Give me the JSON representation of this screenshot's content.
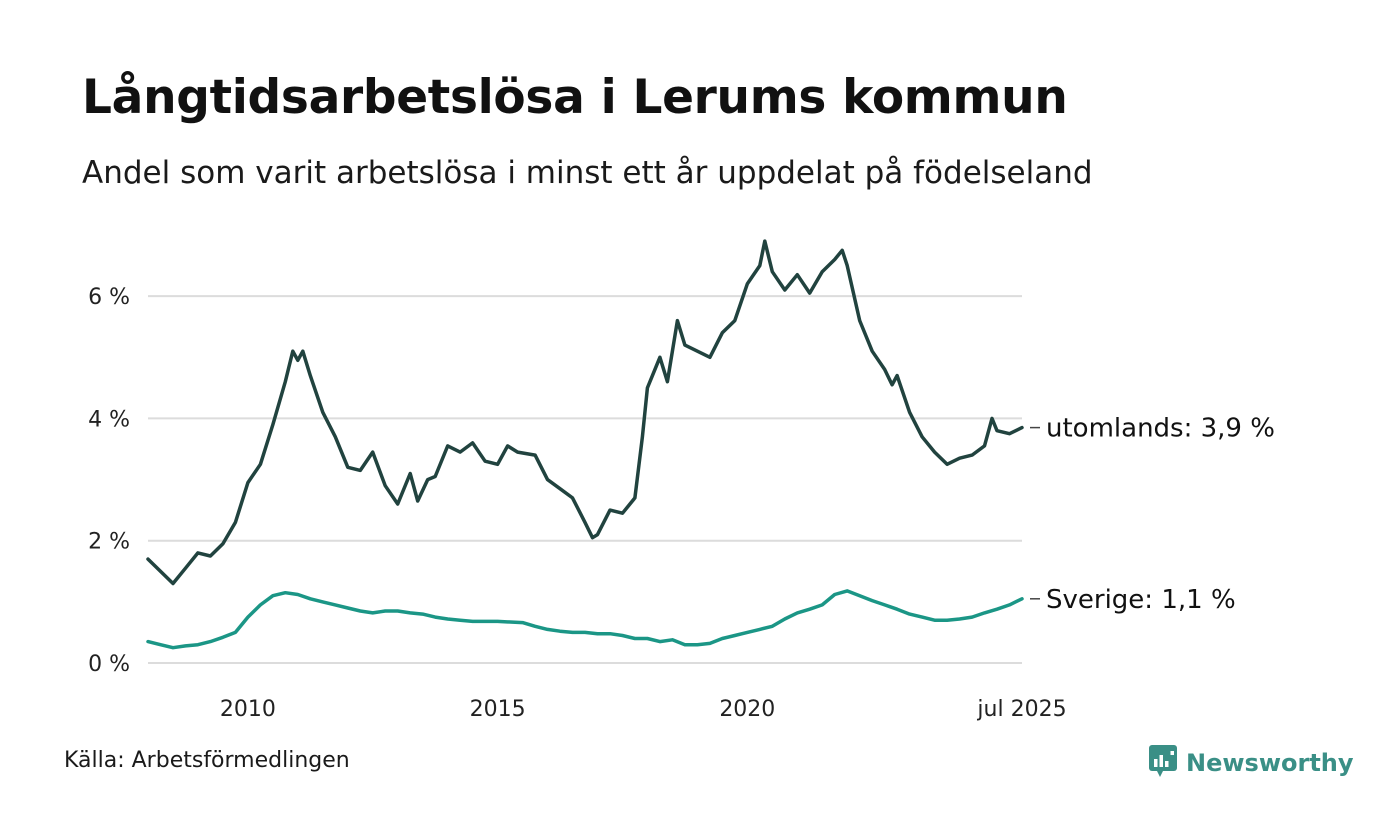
{
  "title": "Långtidsarbetslösa i Lerums kommun",
  "subtitle": "Andel som varit arbetslösa i minst ett år uppdelat på födelseland",
  "source": "Källa: Arbetsförmedlingen",
  "brand": {
    "name": "Newsworthy",
    "icon": "newsworthy-logo-icon",
    "color": "#3a8f86"
  },
  "chart_data": {
    "type": "line",
    "ylim": [
      0,
      7
    ],
    "y_ticks": [
      {
        "value": 0,
        "label": "0 %"
      },
      {
        "value": 2,
        "label": "2 %"
      },
      {
        "value": 4,
        "label": "4 %"
      },
      {
        "value": 6,
        "label": "6 %"
      }
    ],
    "x_ticks": [
      {
        "value": 2010,
        "label": "2010"
      },
      {
        "value": 2015,
        "label": "2015"
      },
      {
        "value": 2020,
        "label": "2020"
      },
      {
        "value": 2025.5,
        "label": "jul 2025"
      }
    ],
    "xlim": [
      2008.0,
      2025.5
    ],
    "grid": true,
    "series": [
      {
        "name": "utomlands",
        "end_label": "utomlands: 3,9 %",
        "color": "#21433f",
        "points": [
          [
            2008.0,
            1.7
          ],
          [
            2008.5,
            1.3
          ],
          [
            2008.75,
            1.55
          ],
          [
            2009.0,
            1.8
          ],
          [
            2009.25,
            1.75
          ],
          [
            2009.5,
            1.95
          ],
          [
            2009.75,
            2.3
          ],
          [
            2010.0,
            2.95
          ],
          [
            2010.25,
            3.25
          ],
          [
            2010.5,
            3.9
          ],
          [
            2010.75,
            4.6
          ],
          [
            2010.9,
            5.1
          ],
          [
            2011.0,
            4.95
          ],
          [
            2011.1,
            5.1
          ],
          [
            2011.25,
            4.7
          ],
          [
            2011.5,
            4.1
          ],
          [
            2011.75,
            3.7
          ],
          [
            2012.0,
            3.2
          ],
          [
            2012.25,
            3.15
          ],
          [
            2012.5,
            3.45
          ],
          [
            2012.75,
            2.9
          ],
          [
            2013.0,
            2.6
          ],
          [
            2013.25,
            3.1
          ],
          [
            2013.4,
            2.65
          ],
          [
            2013.6,
            3.0
          ],
          [
            2013.75,
            3.05
          ],
          [
            2014.0,
            3.55
          ],
          [
            2014.25,
            3.45
          ],
          [
            2014.5,
            3.6
          ],
          [
            2014.75,
            3.3
          ],
          [
            2015.0,
            3.25
          ],
          [
            2015.2,
            3.55
          ],
          [
            2015.4,
            3.45
          ],
          [
            2015.75,
            3.4
          ],
          [
            2016.0,
            3.0
          ],
          [
            2016.25,
            2.85
          ],
          [
            2016.5,
            2.7
          ],
          [
            2016.75,
            2.3
          ],
          [
            2016.9,
            2.05
          ],
          [
            2017.0,
            2.1
          ],
          [
            2017.25,
            2.5
          ],
          [
            2017.5,
            2.45
          ],
          [
            2017.75,
            2.7
          ],
          [
            2017.9,
            3.7
          ],
          [
            2018.0,
            4.5
          ],
          [
            2018.25,
            5.0
          ],
          [
            2018.4,
            4.6
          ],
          [
            2018.6,
            5.6
          ],
          [
            2018.75,
            5.2
          ],
          [
            2019.0,
            5.1
          ],
          [
            2019.25,
            5.0
          ],
          [
            2019.5,
            5.4
          ],
          [
            2019.75,
            5.6
          ],
          [
            2020.0,
            6.2
          ],
          [
            2020.25,
            6.5
          ],
          [
            2020.35,
            6.9
          ],
          [
            2020.5,
            6.4
          ],
          [
            2020.75,
            6.1
          ],
          [
            2021.0,
            6.35
          ],
          [
            2021.25,
            6.05
          ],
          [
            2021.5,
            6.4
          ],
          [
            2021.75,
            6.6
          ],
          [
            2021.9,
            6.75
          ],
          [
            2022.0,
            6.5
          ],
          [
            2022.25,
            5.6
          ],
          [
            2022.5,
            5.1
          ],
          [
            2022.75,
            4.8
          ],
          [
            2022.9,
            4.55
          ],
          [
            2023.0,
            4.7
          ],
          [
            2023.25,
            4.1
          ],
          [
            2023.5,
            3.7
          ],
          [
            2023.75,
            3.45
          ],
          [
            2024.0,
            3.25
          ],
          [
            2024.25,
            3.35
          ],
          [
            2024.5,
            3.4
          ],
          [
            2024.75,
            3.55
          ],
          [
            2024.9,
            4.0
          ],
          [
            2025.0,
            3.8
          ],
          [
            2025.25,
            3.75
          ],
          [
            2025.5,
            3.85
          ]
        ]
      },
      {
        "name": "Sverige",
        "end_label": "Sverige: 1,1 %",
        "color": "#1b9686",
        "points": [
          [
            2008.0,
            0.35
          ],
          [
            2008.25,
            0.3
          ],
          [
            2008.5,
            0.25
          ],
          [
            2008.75,
            0.28
          ],
          [
            2009.0,
            0.3
          ],
          [
            2009.25,
            0.35
          ],
          [
            2009.5,
            0.42
          ],
          [
            2009.75,
            0.5
          ],
          [
            2010.0,
            0.75
          ],
          [
            2010.25,
            0.95
          ],
          [
            2010.5,
            1.1
          ],
          [
            2010.75,
            1.15
          ],
          [
            2011.0,
            1.12
          ],
          [
            2011.25,
            1.05
          ],
          [
            2011.5,
            1.0
          ],
          [
            2011.75,
            0.95
          ],
          [
            2012.0,
            0.9
          ],
          [
            2012.25,
            0.85
          ],
          [
            2012.5,
            0.82
          ],
          [
            2012.75,
            0.85
          ],
          [
            2013.0,
            0.85
          ],
          [
            2013.25,
            0.82
          ],
          [
            2013.5,
            0.8
          ],
          [
            2013.75,
            0.75
          ],
          [
            2014.0,
            0.72
          ],
          [
            2014.25,
            0.7
          ],
          [
            2014.5,
            0.68
          ],
          [
            2014.75,
            0.68
          ],
          [
            2015.0,
            0.68
          ],
          [
            2015.25,
            0.67
          ],
          [
            2015.5,
            0.66
          ],
          [
            2015.75,
            0.6
          ],
          [
            2016.0,
            0.55
          ],
          [
            2016.25,
            0.52
          ],
          [
            2016.5,
            0.5
          ],
          [
            2016.75,
            0.5
          ],
          [
            2017.0,
            0.48
          ],
          [
            2017.25,
            0.48
          ],
          [
            2017.5,
            0.45
          ],
          [
            2017.75,
            0.4
          ],
          [
            2018.0,
            0.4
          ],
          [
            2018.25,
            0.35
          ],
          [
            2018.5,
            0.38
          ],
          [
            2018.75,
            0.3
          ],
          [
            2019.0,
            0.3
          ],
          [
            2019.25,
            0.32
          ],
          [
            2019.5,
            0.4
          ],
          [
            2019.75,
            0.45
          ],
          [
            2020.0,
            0.5
          ],
          [
            2020.25,
            0.55
          ],
          [
            2020.5,
            0.6
          ],
          [
            2020.75,
            0.72
          ],
          [
            2021.0,
            0.82
          ],
          [
            2021.25,
            0.88
          ],
          [
            2021.5,
            0.95
          ],
          [
            2021.75,
            1.12
          ],
          [
            2022.0,
            1.18
          ],
          [
            2022.25,
            1.1
          ],
          [
            2022.5,
            1.02
          ],
          [
            2022.75,
            0.95
          ],
          [
            2023.0,
            0.88
          ],
          [
            2023.25,
            0.8
          ],
          [
            2023.5,
            0.75
          ],
          [
            2023.75,
            0.7
          ],
          [
            2024.0,
            0.7
          ],
          [
            2024.25,
            0.72
          ],
          [
            2024.5,
            0.75
          ],
          [
            2024.75,
            0.82
          ],
          [
            2025.0,
            0.88
          ],
          [
            2025.25,
            0.95
          ],
          [
            2025.5,
            1.05
          ]
        ]
      }
    ]
  }
}
